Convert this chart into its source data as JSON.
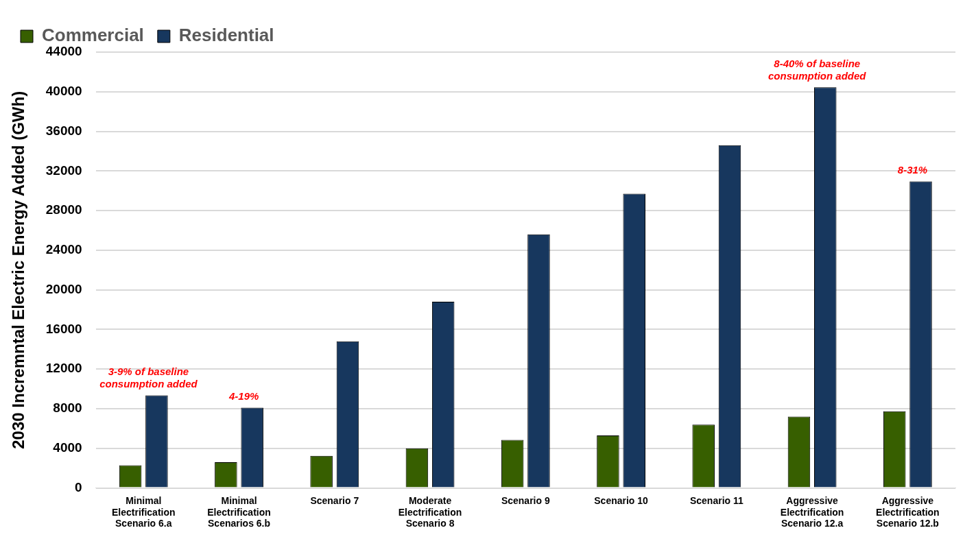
{
  "chart_data": {
    "type": "bar",
    "ylabel": "2030 Incremntal Electric Energy Added (GWh)",
    "categories": [
      "Minimal Electrification Scenario 6.a",
      "Minimal Electrification Scenarios 6.b",
      "Scenario 7",
      "Moderate Electrification Scenario 8",
      "Scenario 9",
      "Scenario 10",
      "Scenario 11",
      "Aggressive Electrification Scenario 12.a",
      "Aggressive Electrification Scenario 12.b"
    ],
    "series": [
      {
        "name": "Commercial",
        "color": "#375f00",
        "values": [
          2300,
          2600,
          3250,
          4000,
          4850,
          5300,
          6400,
          7200,
          7750
        ]
      },
      {
        "name": "Residential",
        "color": "#17375e",
        "values": [
          9350,
          8100,
          14800,
          18800,
          25600,
          29700,
          34600,
          40450,
          30950
        ]
      }
    ],
    "ylim": [
      0,
      44000
    ],
    "yticks": [
      0,
      4000,
      8000,
      12000,
      16000,
      20000,
      24000,
      28000,
      32000,
      36000,
      40000,
      44000
    ],
    "grid": "y",
    "legend": "top left",
    "annotations": [
      {
        "text": "3-9% of baseline consumption added",
        "x": "Minimal Electrification Scenario 6.a",
        "y": 9350
      },
      {
        "text": "4-19%",
        "x": "Minimal Electrification Scenarios 6.b",
        "y": 8100
      },
      {
        "text": "8-40% of baseline consumption added",
        "x": "Aggressive Electrification Scenario 12.a",
        "y": 40450
      },
      {
        "text": "8-31%",
        "x": "Aggressive Electrification Scenario 12.b",
        "y": 30950
      }
    ]
  }
}
